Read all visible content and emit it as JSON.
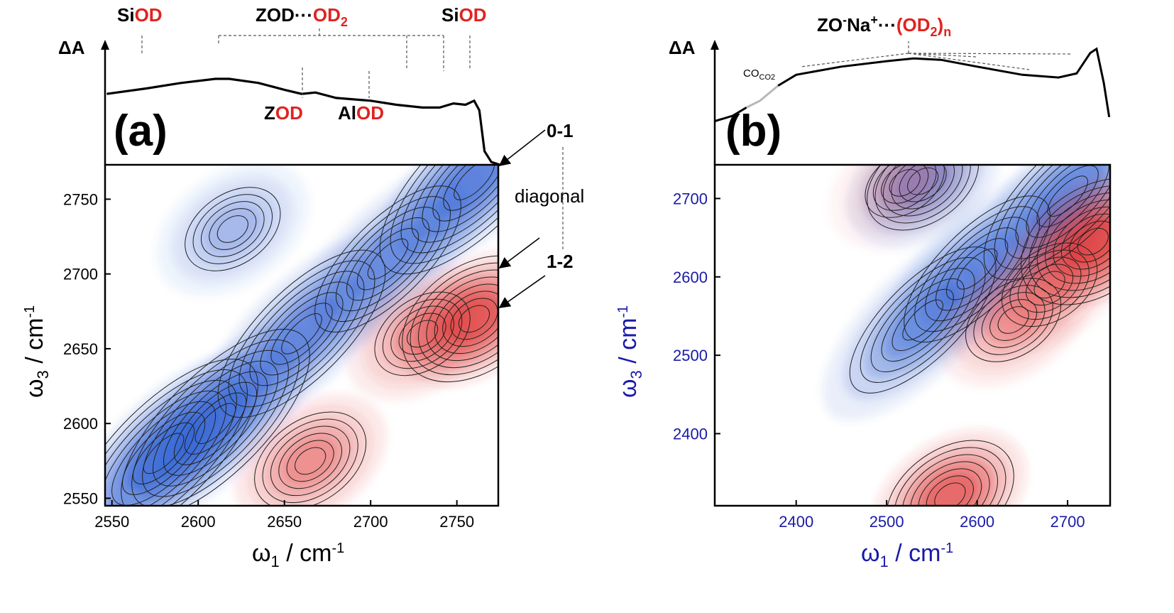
{
  "chart_data": [
    {
      "type": "heatmap",
      "panel_label": "(a)",
      "top_trace": {
        "ylabel": "ΔA",
        "annotations": {
          "siod_left": {
            "black": "Si",
            "red": "OD"
          },
          "zod_od2": {
            "black": "ZOD···",
            "red": "OD",
            "sub": "2"
          },
          "siod_right": {
            "black": "Si",
            "red": "OD"
          },
          "zod": {
            "black": "Z",
            "red": "OD"
          },
          "alod": {
            "black": "Al",
            "red": "OD"
          }
        },
        "points": [
          [
            2547,
            0.52
          ],
          [
            2570,
            0.56
          ],
          [
            2590,
            0.6
          ],
          [
            2610,
            0.63
          ],
          [
            2618,
            0.63
          ],
          [
            2635,
            0.6
          ],
          [
            2650,
            0.55
          ],
          [
            2660,
            0.52
          ],
          [
            2668,
            0.53
          ],
          [
            2680,
            0.49
          ],
          [
            2700,
            0.47
          ],
          [
            2715,
            0.44
          ],
          [
            2730,
            0.42
          ],
          [
            2740,
            0.42
          ],
          [
            2748,
            0.45
          ],
          [
            2755,
            0.44
          ],
          [
            2760,
            0.47
          ],
          [
            2763,
            0.4
          ],
          [
            2766,
            0.1
          ],
          [
            2770,
            0.02
          ],
          [
            2775,
            0.0
          ]
        ]
      },
      "xlabel": "ω1 / cm-1",
      "ylabel": "ω3 / cm-1",
      "xlim": [
        2546,
        2774
      ],
      "ylim": [
        2545,
        2773
      ],
      "xticks": [
        "2550",
        "2600",
        "2650",
        "2700",
        "2750"
      ],
      "yticks": [
        "2550",
        "2600",
        "2650",
        "2700",
        "2750"
      ],
      "diagonal_label": "diagonal",
      "peak_labels": [
        "0-1",
        "1-2"
      ],
      "features": [
        {
          "sign": "negative",
          "x": 2580,
          "y": 2580,
          "amp": 0.85
        },
        {
          "sign": "negative",
          "x": 2610,
          "y": 2600,
          "amp": 0.75
        },
        {
          "sign": "negative",
          "x": 2660,
          "y": 2660,
          "amp": 0.65
        },
        {
          "sign": "negative",
          "x": 2710,
          "y": 2710,
          "amp": 0.55
        },
        {
          "sign": "negative",
          "x": 2760,
          "y": 2763,
          "amp": 0.75
        },
        {
          "sign": "negative",
          "x": 2620,
          "y": 2730,
          "amp": 0.35
        },
        {
          "sign": "positive",
          "x": 2760,
          "y": 2670,
          "amp": 0.75
        },
        {
          "sign": "positive",
          "x": 2665,
          "y": 2575,
          "amp": 0.45
        },
        {
          "sign": "positive",
          "x": 2730,
          "y": 2660,
          "amp": 0.4
        }
      ]
    },
    {
      "type": "heatmap",
      "panel_label": "(b)",
      "top_trace": {
        "ylabel": "ΔA",
        "gap_label": "CO2",
        "annotation": {
          "pre": "ZO",
          "sup1": "-",
          "mid": "Na",
          "sup2": "+",
          "dots": "···",
          "red": "(OD",
          "red_sub": "2",
          "red_close": ")",
          "sub_n": "n"
        },
        "points": [
          [
            2310,
            0.32
          ],
          [
            2330,
            0.36
          ],
          [
            2345,
            0.42
          ],
          [
            2360,
            0.47
          ],
          [
            2380,
            0.58
          ],
          [
            2400,
            0.66
          ],
          [
            2450,
            0.72
          ],
          [
            2500,
            0.76
          ],
          [
            2530,
            0.78
          ],
          [
            2560,
            0.77
          ],
          [
            2600,
            0.72
          ],
          [
            2650,
            0.66
          ],
          [
            2690,
            0.64
          ],
          [
            2710,
            0.67
          ],
          [
            2725,
            0.82
          ],
          [
            2732,
            0.85
          ],
          [
            2740,
            0.6
          ],
          [
            2746,
            0.35
          ]
        ]
      },
      "xlabel": "ω1 / cm-1",
      "ylabel": "ω3 / cm-1",
      "xlim": [
        2310,
        2747
      ],
      "ylim": [
        2308,
        2743
      ],
      "xticks": [
        "2400",
        "2500",
        "2600",
        "2700"
      ],
      "yticks": [
        "2400",
        "2500",
        "2600",
        "2700"
      ],
      "features": [
        {
          "sign": "negative",
          "x": 2540,
          "y": 2545,
          "amp": 0.55
        },
        {
          "sign": "negative",
          "x": 2600,
          "y": 2610,
          "amp": 0.5
        },
        {
          "sign": "negative",
          "x": 2700,
          "y": 2703,
          "amp": 0.7
        },
        {
          "sign": "negative",
          "x": 2540,
          "y": 2722,
          "amp": 0.55
        },
        {
          "sign": "positive",
          "x": 2728,
          "y": 2645,
          "amp": 0.85
        },
        {
          "sign": "positive",
          "x": 2570,
          "y": 2320,
          "amp": 0.65
        },
        {
          "sign": "positive",
          "x": 2640,
          "y": 2545,
          "amp": 0.35
        },
        {
          "sign": "positive",
          "x": 2680,
          "y": 2590,
          "amp": 0.3
        },
        {
          "sign": "positive",
          "x": 2520,
          "y": 2720,
          "amp": 0.2
        }
      ]
    }
  ]
}
